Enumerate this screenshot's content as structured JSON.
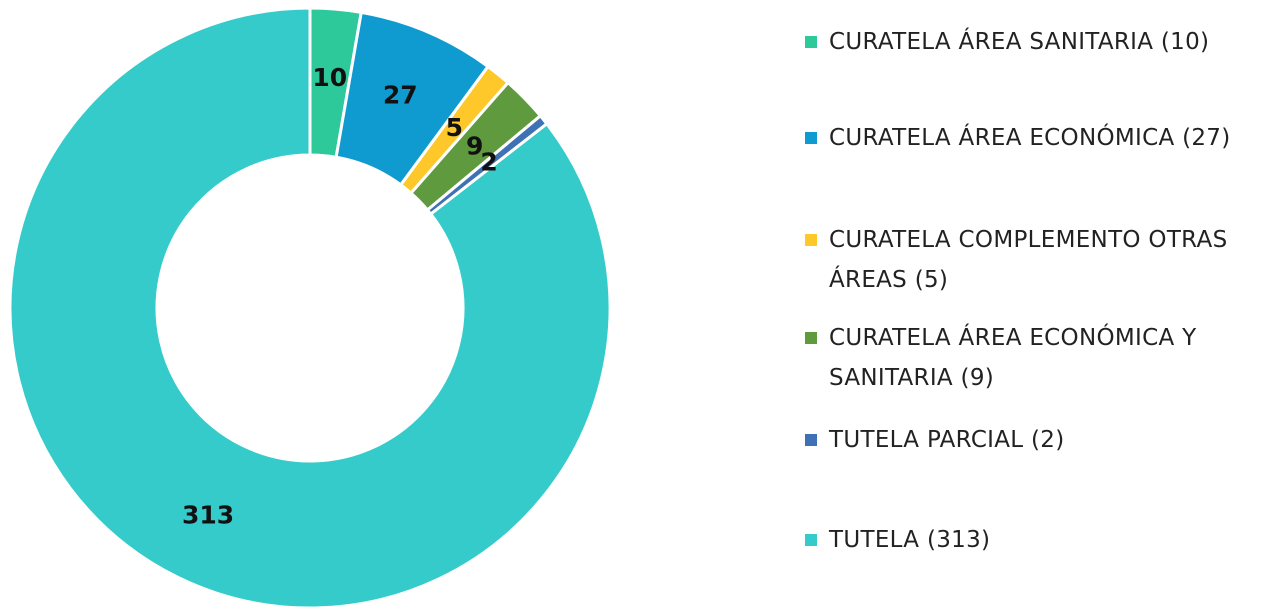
{
  "chart_data": {
    "type": "pie",
    "categories": [
      "CURATELA ÁREA SANITARIA (10)",
      "CURATELA ÁREA ECONÓMICA (27)",
      "CURATELA COMPLEMENTO OTRAS ÁREAS (5)",
      "CURATELA ÁREA ECONÓMICA Y SANITARIA (9)",
      "TUTELA PARCIAL (2)",
      "TUTELA (313)"
    ],
    "values": [
      10,
      27,
      5,
      9,
      2,
      313
    ],
    "colors": [
      "#2ec99b",
      "#0f9bcf",
      "#ffc82a",
      "#5f9b3e",
      "#3f72b5",
      "#36cbcb"
    ],
    "legend": "right"
  }
}
